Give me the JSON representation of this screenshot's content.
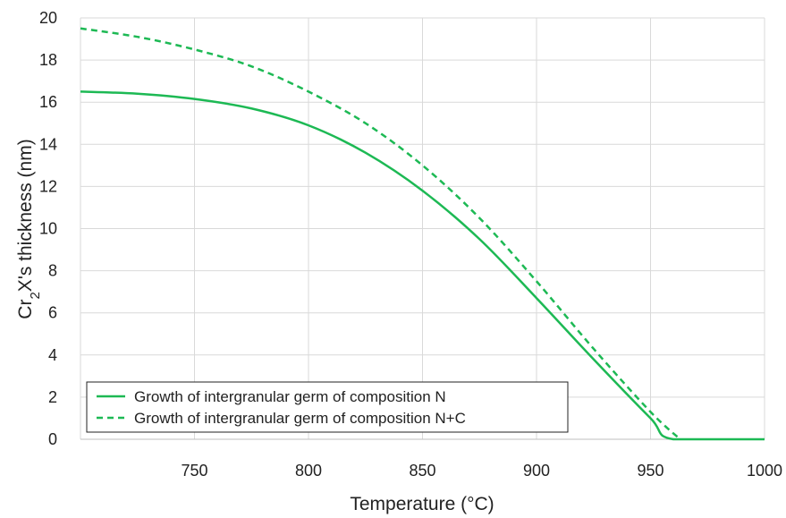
{
  "chart_data": {
    "type": "line",
    "xlabel": "Temperature (°C)",
    "ylabel": {
      "prefix": "Cr",
      "subscript": "2",
      "suffix": "X's thickness (nm)"
    },
    "xlim": [
      700,
      1000
    ],
    "ylim": [
      0,
      20
    ],
    "xticks": [
      750,
      800,
      850,
      900,
      950,
      1000
    ],
    "yticks": [
      0,
      2,
      4,
      6,
      8,
      10,
      12,
      14,
      16,
      18,
      20
    ],
    "grid": true,
    "legend_position": "bottom-left",
    "series": [
      {
        "name": "Growth of intergranular germ of composition N",
        "color": "#1db954",
        "style": "solid",
        "points": [
          [
            700,
            16.5
          ],
          [
            725,
            16.4
          ],
          [
            750,
            16.15
          ],
          [
            775,
            15.7
          ],
          [
            800,
            14.9
          ],
          [
            825,
            13.6
          ],
          [
            850,
            11.8
          ],
          [
            875,
            9.5
          ],
          [
            900,
            6.7
          ],
          [
            925,
            3.8
          ],
          [
            950,
            1.0
          ],
          [
            960,
            0.0
          ],
          [
            1000,
            0.0
          ]
        ]
      },
      {
        "name": "Growth of intergranular germ of composition N+C",
        "color": "#1db954",
        "style": "dashed",
        "points": [
          [
            700,
            19.5
          ],
          [
            725,
            19.1
          ],
          [
            750,
            18.5
          ],
          [
            775,
            17.7
          ],
          [
            800,
            16.5
          ],
          [
            825,
            15.0
          ],
          [
            850,
            13.0
          ],
          [
            875,
            10.5
          ],
          [
            900,
            7.5
          ],
          [
            925,
            4.3
          ],
          [
            950,
            1.3
          ],
          [
            963,
            0.0
          ]
        ]
      }
    ]
  }
}
